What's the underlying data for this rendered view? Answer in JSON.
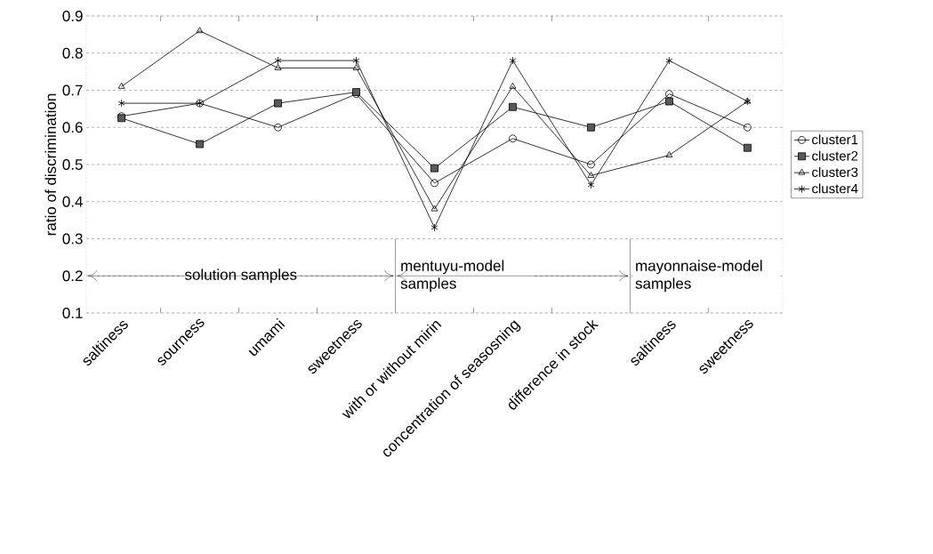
{
  "chart_data": {
    "type": "line",
    "ylabel": "ratio of discrimination",
    "categories": [
      "saltiness",
      "sourness",
      "umami",
      "sweetness",
      "with or without mirin",
      "concentration of seasosning",
      "difference in stock",
      "saltiness",
      "sweetness"
    ],
    "series": [
      {
        "name": "cluster1",
        "color": "#000000",
        "marker": "circle",
        "values": [
          0.63,
          0.665,
          0.6,
          0.69,
          0.45,
          0.57,
          0.5,
          0.69,
          0.6
        ]
      },
      {
        "name": "cluster2",
        "color": "#000000",
        "marker": "square",
        "values": [
          0.625,
          0.555,
          0.665,
          0.695,
          0.49,
          0.655,
          0.6,
          0.67,
          0.545
        ]
      },
      {
        "name": "cluster3",
        "color": "#000000",
        "marker": "triangle",
        "values": [
          0.71,
          0.86,
          0.76,
          0.76,
          0.38,
          0.71,
          0.47,
          0.525,
          0.67
        ]
      },
      {
        "name": "cluster4",
        "color": "#000000",
        "marker": "cross",
        "values": [
          0.665,
          0.665,
          0.78,
          0.78,
          0.33,
          0.78,
          0.445,
          0.78,
          0.67
        ]
      }
    ],
    "ylim": [
      0.1,
      0.9
    ],
    "yticks": [
      0.1,
      0.2,
      0.3,
      0.4,
      0.5,
      0.6,
      0.7,
      0.8,
      0.9
    ],
    "grid": "y",
    "legend": "right",
    "line_style": "solid",
    "annotations": [
      "solution samples",
      "mentuyu-model samples",
      "mayonnaise-model samples"
    ]
  }
}
